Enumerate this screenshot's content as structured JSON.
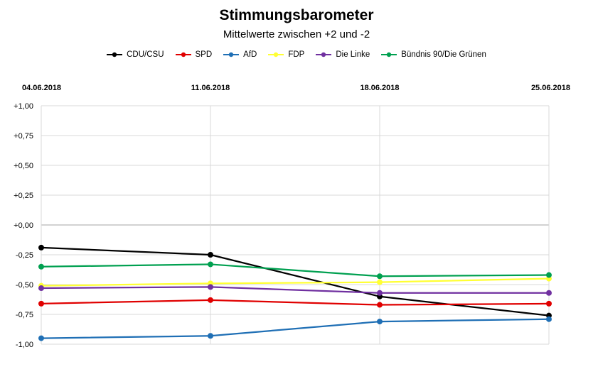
{
  "header": {
    "title": "Stimmungsbarometer",
    "subtitle": "Mittelwerte zwischen +2 und -2"
  },
  "chart_data": {
    "type": "line",
    "title": "Stimmungsbarometer",
    "subtitle": "Mittelwerte zwischen +2 und -2",
    "categories": [
      "04.06.2018",
      "11.06.2018",
      "18.06.2018",
      "25.06.2018"
    ],
    "y_ticks": [
      "+1,00",
      "+0,75",
      "+0,50",
      "+0,25",
      "+0,00",
      "-0,25",
      "-0,50",
      "-0,75",
      "-1,00"
    ],
    "ylim": [
      -1,
      1
    ],
    "x_axis_position": "top",
    "grid": true,
    "legend_position": "top",
    "series": [
      {
        "name": "CDU/CSU",
        "color": "#000000",
        "values": [
          -0.19,
          -0.25,
          -0.6,
          -0.76
        ]
      },
      {
        "name": "SPD",
        "color": "#e00000",
        "values": [
          -0.66,
          -0.63,
          -0.67,
          -0.66
        ]
      },
      {
        "name": "AfD",
        "color": "#1f6fb5",
        "values": [
          -0.95,
          -0.93,
          -0.81,
          -0.79
        ]
      },
      {
        "name": "FDP",
        "color": "#ffff33",
        "values": [
          -0.51,
          -0.49,
          -0.48,
          -0.45
        ]
      },
      {
        "name": "Die Linke",
        "color": "#7030a0",
        "values": [
          -0.53,
          -0.52,
          -0.57,
          -0.57
        ]
      },
      {
        "name": "Bündnis 90/Die Grünen",
        "color": "#00a050",
        "values": [
          -0.35,
          -0.33,
          -0.43,
          -0.42
        ]
      }
    ]
  }
}
